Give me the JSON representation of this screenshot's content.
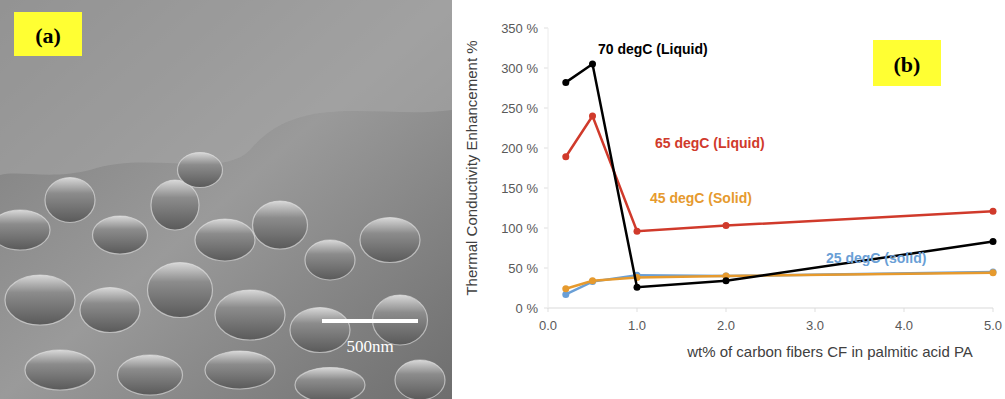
{
  "panel_a": {
    "label": "(a)",
    "scale_bar": "500nm"
  },
  "chart_data": {
    "type": "line",
    "annotations": [
      "(b)"
    ],
    "x_label": "wt% of carbon fibers CF in palmitic acid PA",
    "y_label": "Thermal Conductivity Enhancement %",
    "x": [
      0.2,
      0.5,
      1.0,
      2.0,
      5.0
    ],
    "series": [
      {
        "name": "70 degC (Liquid)",
        "color": "#000000",
        "marker": "circle",
        "values": [
          282,
          305,
          26,
          34,
          83
        ]
      },
      {
        "name": "65 degC (Liquid)",
        "color": "#d03a2b",
        "marker": "circle",
        "values": [
          189,
          240,
          96,
          103,
          121
        ]
      },
      {
        "name": "45 degC (Solid)",
        "color": "#e69a2e",
        "marker": "circle",
        "values": [
          24,
          34,
          38,
          40,
          44
        ]
      },
      {
        "name": "25 degC (solid)",
        "color": "#6a9fd6",
        "marker": "circle",
        "values": [
          17,
          33,
          41,
          40,
          45
        ]
      }
    ],
    "xlim": [
      0,
      5
    ],
    "xticks": [
      {
        "value": 0,
        "label": "0.0"
      },
      {
        "value": 1,
        "label": "1.0"
      },
      {
        "value": 2,
        "label": "2.0"
      },
      {
        "value": 3,
        "label": "3.0"
      },
      {
        "value": 4,
        "label": "4.0"
      },
      {
        "value": 5,
        "label": "5.0"
      }
    ],
    "ylim": [
      0,
      350
    ],
    "yticks": [
      {
        "value": 0,
        "label": "0 %"
      },
      {
        "value": 50,
        "label": "50 %"
      },
      {
        "value": 100,
        "label": "100 %"
      },
      {
        "value": 150,
        "label": "150 %"
      },
      {
        "value": 200,
        "label": "200 %"
      },
      {
        "value": 250,
        "label": "250 %"
      },
      {
        "value": 300,
        "label": "300 %"
      },
      {
        "value": 350,
        "label": "350 %"
      }
    ],
    "grid": false
  }
}
